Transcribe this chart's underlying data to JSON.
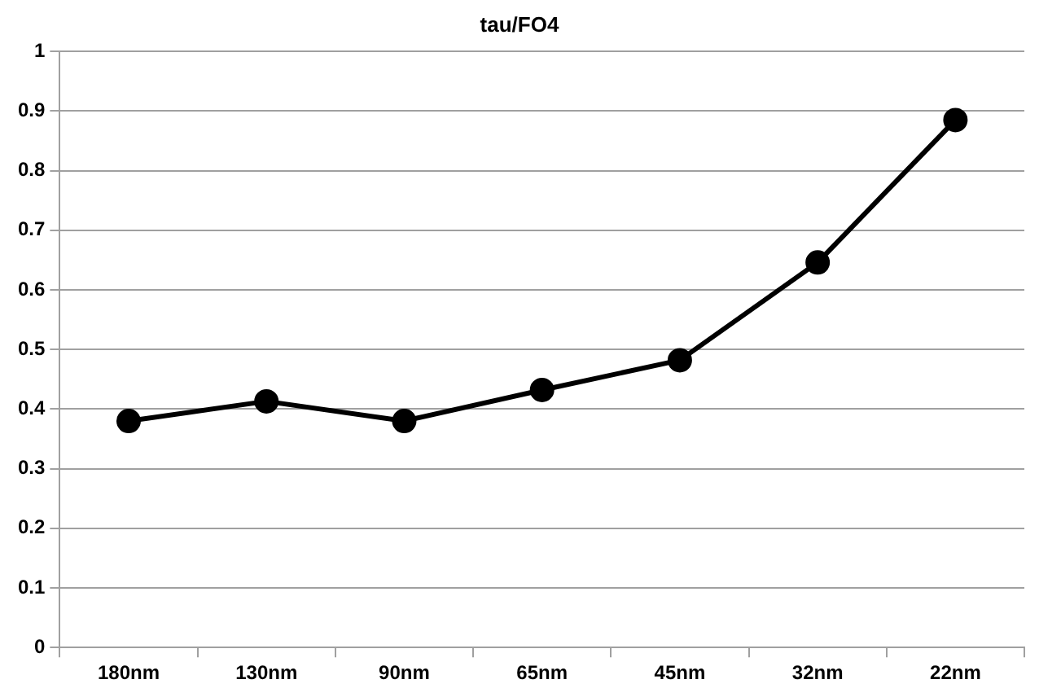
{
  "chart_data": {
    "type": "line",
    "title": "tau/FO4",
    "categories": [
      "180nm",
      "130nm",
      "90nm",
      "65nm",
      "45nm",
      "32nm",
      "22nm"
    ],
    "series": [
      {
        "color": "#000000",
        "values": [
          0.38,
          0.413,
          0.38,
          0.432,
          0.482,
          0.646,
          0.885
        ]
      }
    ],
    "ylim": [
      0,
      1
    ],
    "yticks": [
      0,
      0.1,
      0.2,
      0.3,
      0.4,
      0.5,
      0.6,
      0.7,
      0.8,
      0.9,
      1
    ],
    "grid": "y",
    "legend": false,
    "marker": "circle",
    "line_style": "solid"
  }
}
